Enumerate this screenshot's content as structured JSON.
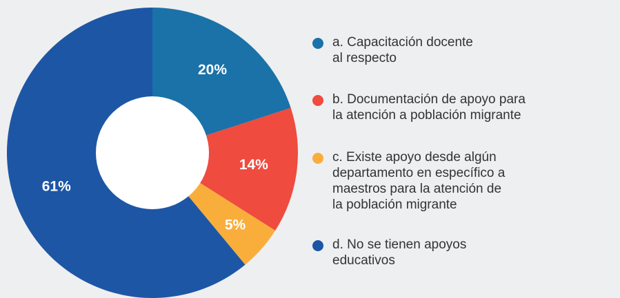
{
  "chart_data": {
    "type": "pie",
    "categories": [
      [
        "a. Capacitación docente",
        "al respecto"
      ],
      [
        "b. Documentación de apoyo para",
        "la atención a población migrante"
      ],
      [
        "c. Existe apoyo desde algún",
        "departamento en específico a",
        "maestros para la atención de",
        "la población migrante"
      ],
      [
        "d. No se tienen apoyos",
        "educativos"
      ]
    ],
    "values": [
      20,
      14,
      5,
      61
    ],
    "value_labels": [
      "20%",
      "14%",
      "5%",
      "61%"
    ],
    "colors": [
      "#1a72a8",
      "#ef4b3f",
      "#f9ae3c",
      "#1d56a5"
    ],
    "donut": true
  }
}
